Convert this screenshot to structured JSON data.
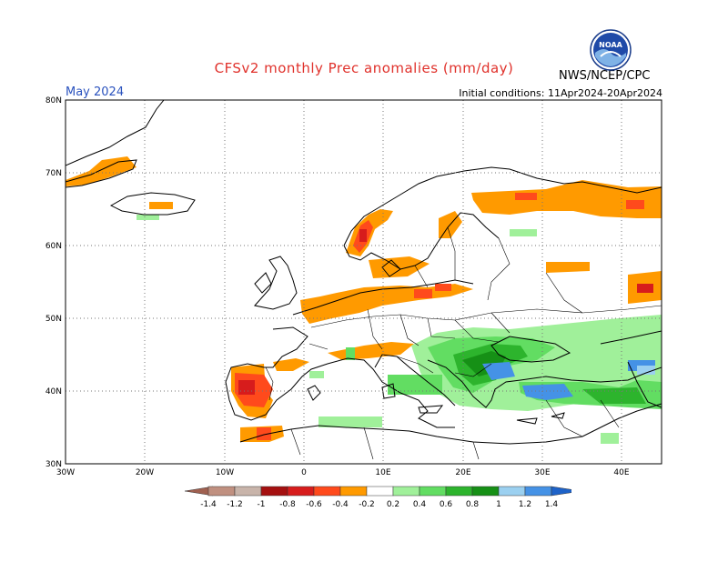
{
  "header": {
    "title": "CFSv2 monthly Prec anomalies (mm/day)",
    "month": "May 2024",
    "initial_conditions": "Initial conditions: 11Apr2024-20Apr2024",
    "agency": "NWS/NCEP/CPC",
    "logo_text": "NOAA"
  },
  "map": {
    "lat_range": [
      30,
      80
    ],
    "lon_range": [
      -30,
      45
    ],
    "lat_labels": [
      "80N",
      "70N",
      "60N",
      "50N",
      "40N",
      "30N"
    ],
    "lon_labels": [
      "30W",
      "20W",
      "10W",
      "0",
      "10E",
      "20E",
      "30E",
      "40E"
    ],
    "grid": "dotted"
  },
  "colorbar": {
    "labels": [
      "-1.4",
      "-1.2",
      "-1",
      "-0.8",
      "-0.6",
      "-0.4",
      "-0.2",
      "0.2",
      "0.4",
      "0.6",
      "0.8",
      "1",
      "1.2",
      "1.4"
    ],
    "colors": [
      "#a06050",
      "#c09080",
      "#c8b4aa",
      "#a51010",
      "#d71c1c",
      "#ff4a1c",
      "#ff9a00",
      "#ffffff",
      "#a0f09a",
      "#62dd62",
      "#2db42d",
      "#169016",
      "#9bd0f0",
      "#4592e6",
      "#1e62c8"
    ]
  },
  "anomaly_areas": [
    {
      "region": "Iceland south coast",
      "value": -0.3
    },
    {
      "region": "Western Norway",
      "value": -0.7
    },
    {
      "region": "Northern Russia",
      "value": -0.5
    },
    {
      "region": "British Isles / North Sea",
      "value": -0.3
    },
    {
      "region": "Iberian Peninsula west",
      "value": -0.7
    },
    {
      "region": "Balkans / Greece",
      "value": 0.7
    },
    {
      "region": "Black Sea / Turkey",
      "value": 1.1
    },
    {
      "region": "Alps / northern Italy",
      "value": -0.3
    }
  ]
}
